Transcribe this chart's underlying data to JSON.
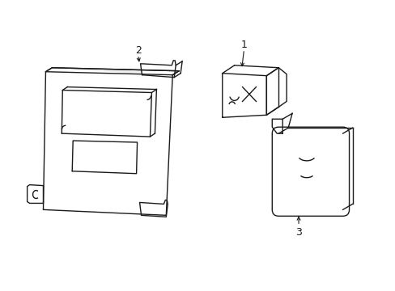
{
  "background_color": "#ffffff",
  "line_color": "#1a1a1a",
  "line_width": 1.0,
  "label_1": "1",
  "label_2": "2",
  "label_3": "3"
}
